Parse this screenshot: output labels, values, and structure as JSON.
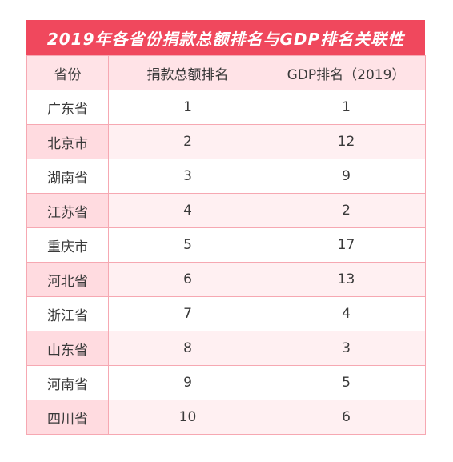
{
  "title": "2019年各省份捐款总额排名与GDP排名关联性",
  "headers": [
    "省份",
    "捐款总额排名",
    "GDP排名（2019）"
  ],
  "rows": [
    {
      "province": "广东省",
      "donation_rank": "1",
      "gdp_rank": "1"
    },
    {
      "province": "北京市",
      "donation_rank": "2",
      "gdp_rank": "12"
    },
    {
      "province": "湖南省",
      "donation_rank": "3",
      "gdp_rank": "9"
    },
    {
      "province": "江苏省",
      "donation_rank": "4",
      "gdp_rank": "2"
    },
    {
      "province": "重庆市",
      "donation_rank": "5",
      "gdp_rank": "17"
    },
    {
      "province": "河北省",
      "donation_rank": "6",
      "gdp_rank": "13"
    },
    {
      "province": "浙江省",
      "donation_rank": "7",
      "gdp_rank": "4"
    },
    {
      "province": "山东省",
      "donation_rank": "8",
      "gdp_rank": "3"
    },
    {
      "province": "河南省",
      "donation_rank": "9",
      "gdp_rank": "5"
    },
    {
      "province": "四川省",
      "donation_rank": "10",
      "gdp_rank": "6"
    }
  ],
  "colors": {
    "title_bg": "#f0485d",
    "header_bg": "#ffe3e7",
    "alt_row_bg": "#fff0f2",
    "border": "#f6a8b2"
  }
}
